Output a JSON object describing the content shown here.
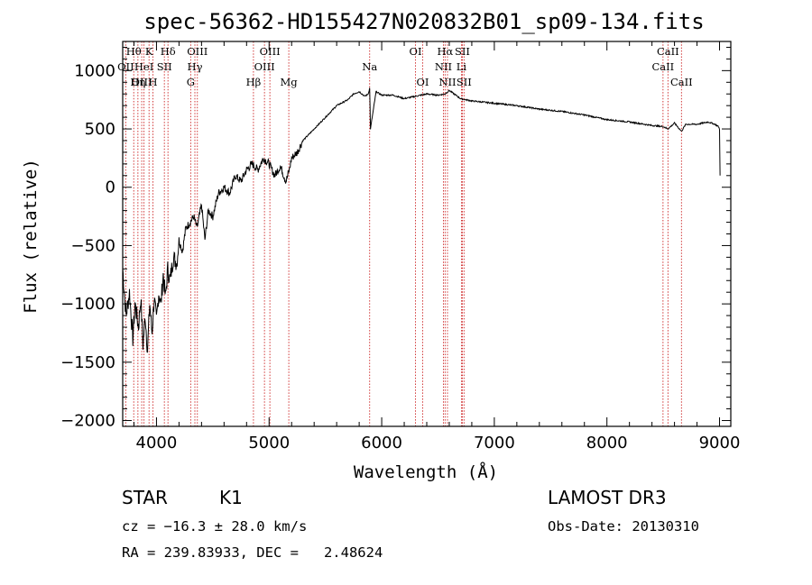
{
  "chart_data": {
    "type": "line",
    "title": "spec-56362-HD155427N020832B01_sp09-134.fits",
    "xlabel": "Wavelength (Å)",
    "ylabel": "Flux (relative)",
    "xlim": [
      3700,
      9100
    ],
    "ylim": [
      -2050,
      1250
    ],
    "xticks": [
      4000,
      5000,
      6000,
      7000,
      8000,
      9000
    ],
    "yticks": [
      -2000,
      -1500,
      -1000,
      -500,
      0,
      500,
      1000
    ],
    "series": [
      {
        "name": "flux",
        "x": [
          3700,
          3730,
          3760,
          3790,
          3810,
          3840,
          3860,
          3880,
          3900,
          3920,
          3940,
          3960,
          3980,
          4000,
          4020,
          4040,
          4060,
          4080,
          4100,
          4120,
          4150,
          4180,
          4200,
          4230,
          4260,
          4300,
          4330,
          4360,
          4400,
          4430,
          4460,
          4500,
          4550,
          4600,
          4650,
          4700,
          4750,
          4800,
          4850,
          4900,
          4950,
          5000,
          5050,
          5100,
          5150,
          5180,
          5200,
          5250,
          5300,
          5400,
          5500,
          5600,
          5700,
          5750,
          5800,
          5850,
          5880,
          5893,
          5900,
          5950,
          6000,
          6100,
          6200,
          6300,
          6400,
          6500,
          6563,
          6600,
          6700,
          6800,
          6900,
          7000,
          7200,
          7400,
          7600,
          7800,
          8000,
          8200,
          8400,
          8500,
          8542,
          8600,
          8662,
          8700,
          8800,
          8900,
          8960,
          8990,
          9000,
          9005
        ],
        "y": [
          -700,
          -1100,
          -900,
          -1300,
          -1000,
          -1200,
          -950,
          -1350,
          -1100,
          -1400,
          -1000,
          -1250,
          -950,
          -1150,
          -900,
          -1000,
          -750,
          -950,
          -700,
          -800,
          -600,
          -650,
          -450,
          -550,
          -350,
          -300,
          -250,
          -350,
          -150,
          -450,
          -200,
          -250,
          -50,
          0,
          -50,
          100,
          50,
          150,
          200,
          150,
          250,
          200,
          100,
          180,
          50,
          150,
          250,
          300,
          400,
          500,
          600,
          700,
          750,
          800,
          820,
          780,
          800,
          850,
          500,
          820,
          790,
          790,
          760,
          780,
          800,
          790,
          800,
          830,
          760,
          740,
          730,
          720,
          700,
          670,
          650,
          620,
          580,
          560,
          530,
          520,
          500,
          550,
          480,
          540,
          540,
          560,
          540,
          520,
          500,
          100
        ]
      }
    ],
    "lines": [
      {
        "label": "Hθ",
        "x": 3798,
        "row": 1
      },
      {
        "label": "OII",
        "x": 3727,
        "row": 2
      },
      {
        "label": "OIII",
        "x": 3869,
        "row": 3
      },
      {
        "label": "K",
        "x": 3934,
        "row": 1
      },
      {
        "label": "HeI",
        "x": 3889,
        "row": 2
      },
      {
        "label": "Hη",
        "x": 3835,
        "row": 3
      },
      {
        "label": "H",
        "x": 3969,
        "row": 3
      },
      {
        "label": "SII",
        "x": 4070,
        "row": 2
      },
      {
        "label": "Hδ",
        "x": 4102,
        "row": 1
      },
      {
        "label": "OIII",
        "x": 4363,
        "row": 1
      },
      {
        "label": "Hγ",
        "x": 4341,
        "row": 2
      },
      {
        "label": "G",
        "x": 4304,
        "row": 3
      },
      {
        "label": "Hβ",
        "x": 4861,
        "row": 3
      },
      {
        "label": "OIII",
        "x": 5007,
        "row": 1
      },
      {
        "label": "OIII",
        "x": 4959,
        "row": 2
      },
      {
        "label": "Mg",
        "x": 5175,
        "row": 3
      },
      {
        "label": "Na",
        "x": 5893,
        "row": 2
      },
      {
        "label": "OI",
        "x": 6300,
        "row": 1
      },
      {
        "label": "OI",
        "x": 6364,
        "row": 3
      },
      {
        "label": "Hα",
        "x": 6563,
        "row": 1
      },
      {
        "label": "NII",
        "x": 6548,
        "row": 2
      },
      {
        "label": "NII",
        "x": 6584,
        "row": 3
      },
      {
        "label": "SII",
        "x": 6716,
        "row": 1
      },
      {
        "label": "Li",
        "x": 6708,
        "row": 2
      },
      {
        "label": "SII",
        "x": 6731,
        "row": 3
      },
      {
        "label": "CaII",
        "x": 8542,
        "row": 1
      },
      {
        "label": "CaII",
        "x": 8498,
        "row": 2
      },
      {
        "label": "CaII",
        "x": 8662,
        "row": 3
      }
    ]
  },
  "info": {
    "class": "STAR",
    "subclass": "K1",
    "survey": "LAMOST DR3",
    "cz": "cz = −16.3 ± 28.0 km/s",
    "obs_date": "Obs-Date: 20130310",
    "coords": "RA = 239.83933, DEC =   2.48624"
  }
}
